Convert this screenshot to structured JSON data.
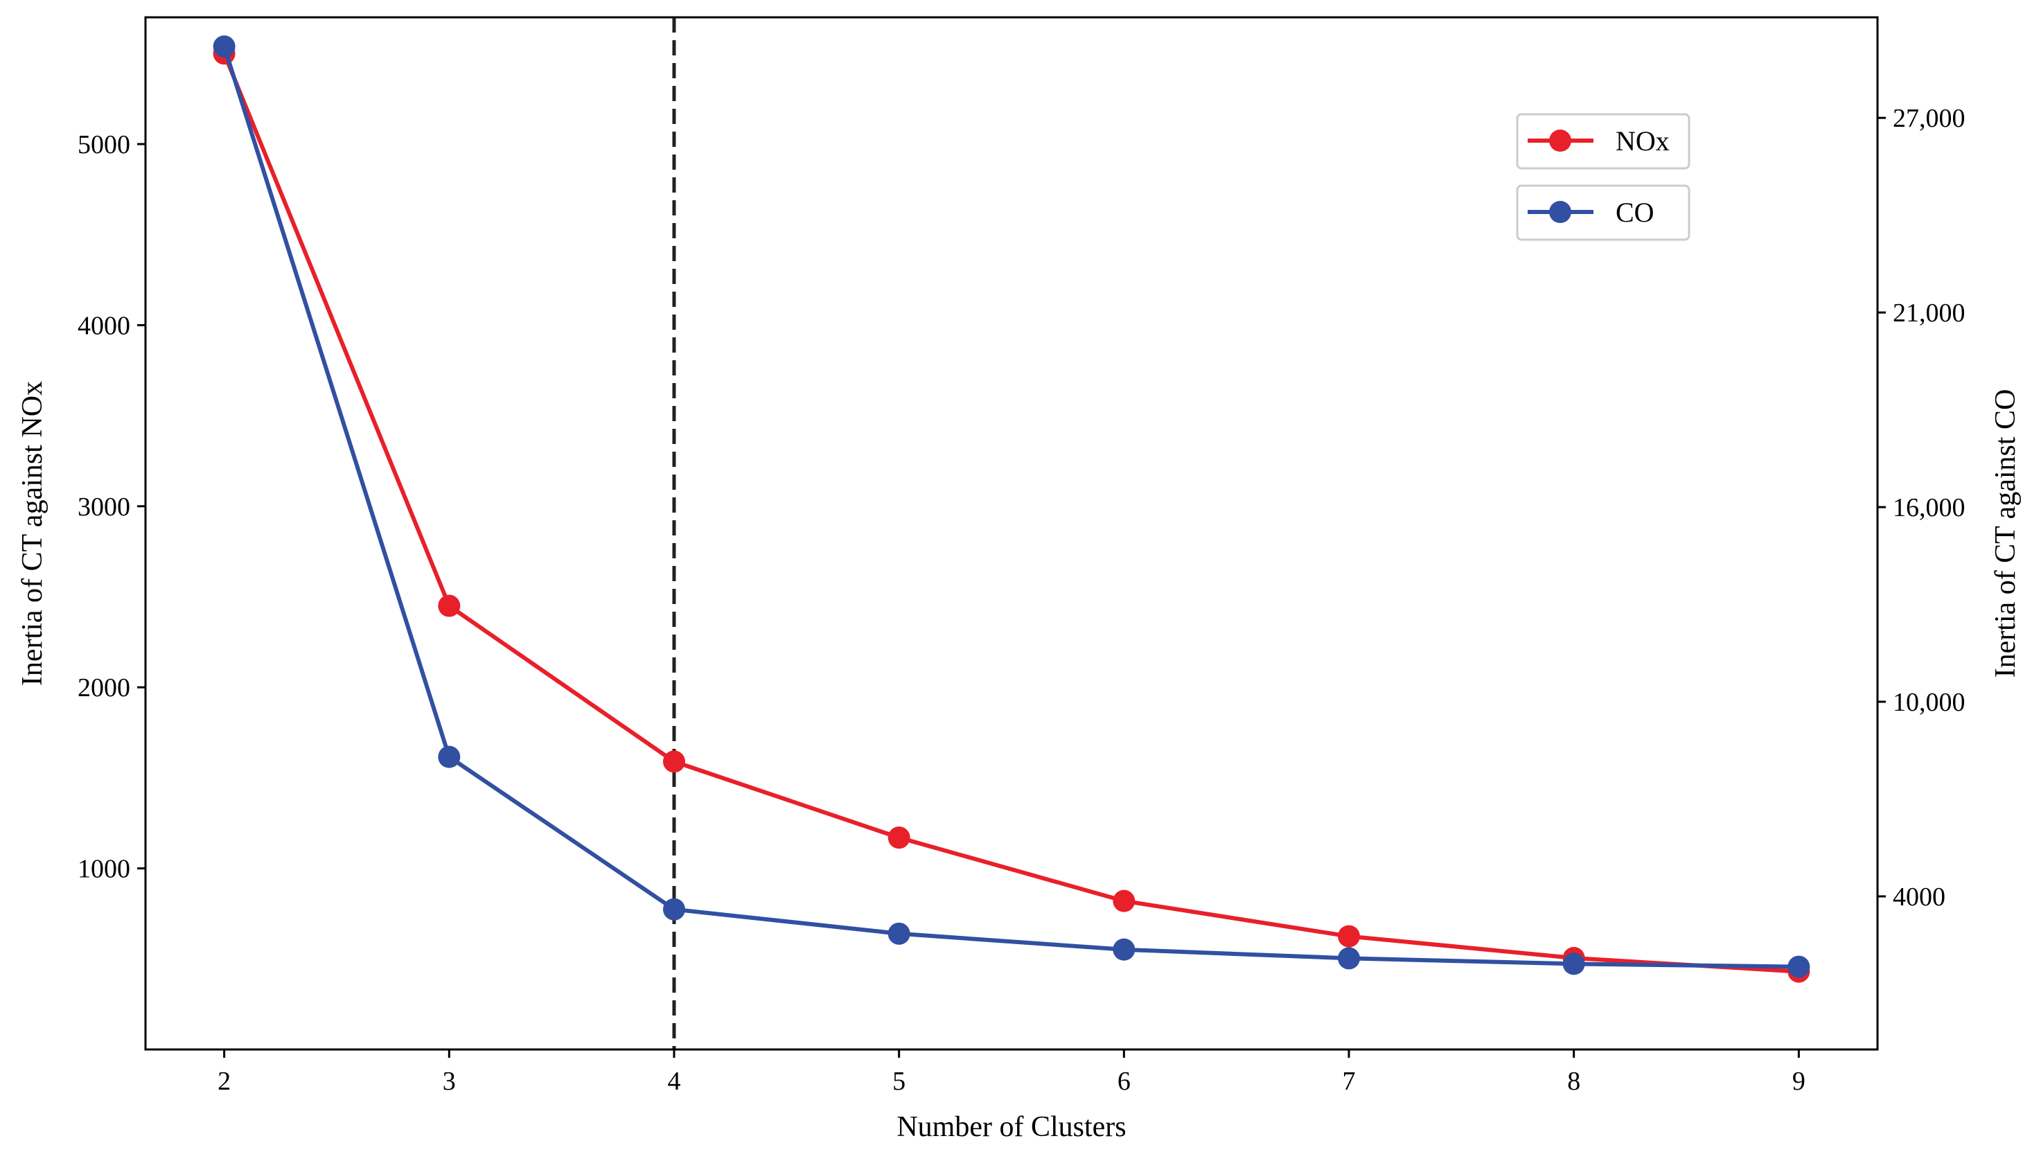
{
  "chart_data": {
    "type": "line",
    "title": "",
    "xlabel": "Number of Clusters",
    "ylabel_left": "Inertia of CT against NOx",
    "ylabel_right": "Inertia of CT against CO",
    "x": [
      2,
      3,
      4,
      5,
      6,
      7,
      8,
      9
    ],
    "x_tick_labels": [
      "2",
      "3",
      "4",
      "5",
      "6",
      "7",
      "8",
      "9"
    ],
    "xlim": [
      1.65,
      9.35
    ],
    "y_left_ticks": [
      1000,
      2000,
      3000,
      4000,
      5000
    ],
    "y_left_tick_labels": [
      "1000",
      "2000",
      "3000",
      "4000",
      "5000"
    ],
    "y_left_lim": [
      0,
      5700
    ],
    "y_right_ticks": [
      4000,
      10000,
      16000,
      21000,
      27000
    ],
    "y_right_tick_labels": [
      "4000",
      "10,000",
      "16,000",
      "21,000",
      "27,000"
    ],
    "y_right_lim": [
      -0.72,
      31.1
    ],
    "vertical_line": {
      "x": 4,
      "style": "dashed"
    },
    "series": [
      {
        "name": "NOx",
        "axis": "left",
        "color": "#e8202a",
        "values": [
          5500,
          2450,
          1590,
          1170,
          820,
          625,
          505,
          430
        ]
      },
      {
        "name": "CO",
        "axis": "right",
        "color": "#3150a2",
        "values": [
          29200,
          8300,
          3600,
          2850,
          2360,
          2090,
          1920,
          1830
        ]
      }
    ],
    "legend": {
      "position": "top-right",
      "entries": [
        "NOx",
        "CO"
      ]
    },
    "grid": false
  }
}
